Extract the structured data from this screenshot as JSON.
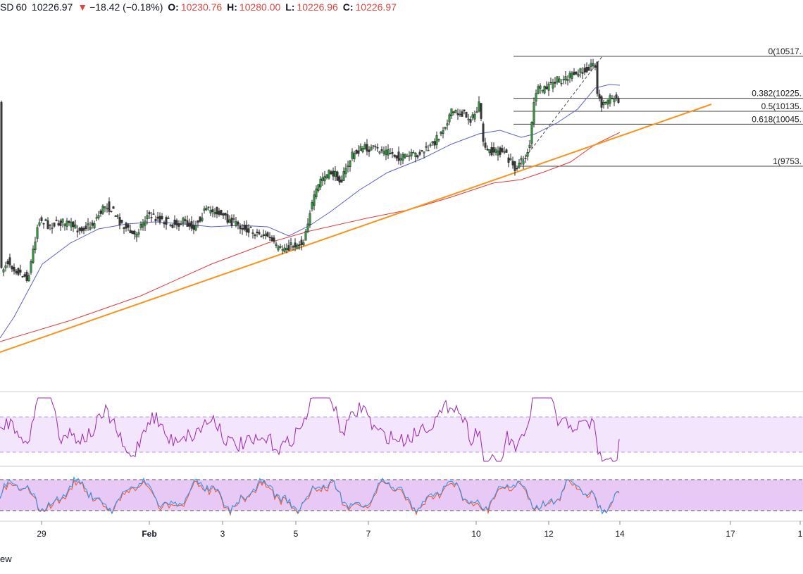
{
  "header": {
    "symbol_suffix": "SD",
    "interval": "60",
    "last_price": "10226.97",
    "change_arrow": "▼",
    "change": "−18.42 (−0.18%)",
    "open_label": "O:",
    "open": "10230.76",
    "high_label": "H:",
    "high": "10280.00",
    "low_label": "L:",
    "low": "10226.96",
    "close_label": "C:",
    "close": "10226.97"
  },
  "brand_fragment": "ew",
  "colors": {
    "up_candle": "#2e9e3c",
    "down_candle": "#3a3a3a",
    "ma_fast": "#5b5fc7",
    "ma_slow": "#e33b3b",
    "trendline": "#f7941d",
    "oscillator": "#9c27b0",
    "stoch_k": "#2196f3",
    "stoch_d": "#f4511e",
    "band_fill": "#f3e5fc",
    "band_fill_stoch": "#e8c9f5"
  },
  "chart_data": [
    {
      "type": "candlestick",
      "title": "",
      "x_axis_ticks": [
        "29",
        "Feb",
        "3",
        "5",
        "7",
        "10",
        "12",
        "14",
        "17",
        "1"
      ],
      "fibonacci_levels": [
        {
          "label": "0(10517.",
          "value": 10517
        },
        {
          "label": "0.382(10225.",
          "value": 10225
        },
        {
          "label": "0.5(10135.",
          "value": 10135
        },
        {
          "label": "0.618(10045.",
          "value": 10045
        },
        {
          "label": "1(9753.",
          "value": 9753
        }
      ],
      "ohlc_summary": {
        "open": 10230.76,
        "high": 10280.0,
        "low": 10226.96,
        "close": 10226.97
      },
      "series": [
        {
          "kind": "moving-average-fast"
        },
        {
          "kind": "moving-average-slow"
        },
        {
          "kind": "trendline"
        }
      ]
    },
    {
      "type": "line",
      "kind": "oscillator",
      "band": "shaded"
    },
    {
      "type": "line",
      "kind": "stochastic",
      "band": "shaded",
      "series": [
        {
          "kind": "k-line"
        },
        {
          "kind": "d-line"
        }
      ]
    }
  ]
}
